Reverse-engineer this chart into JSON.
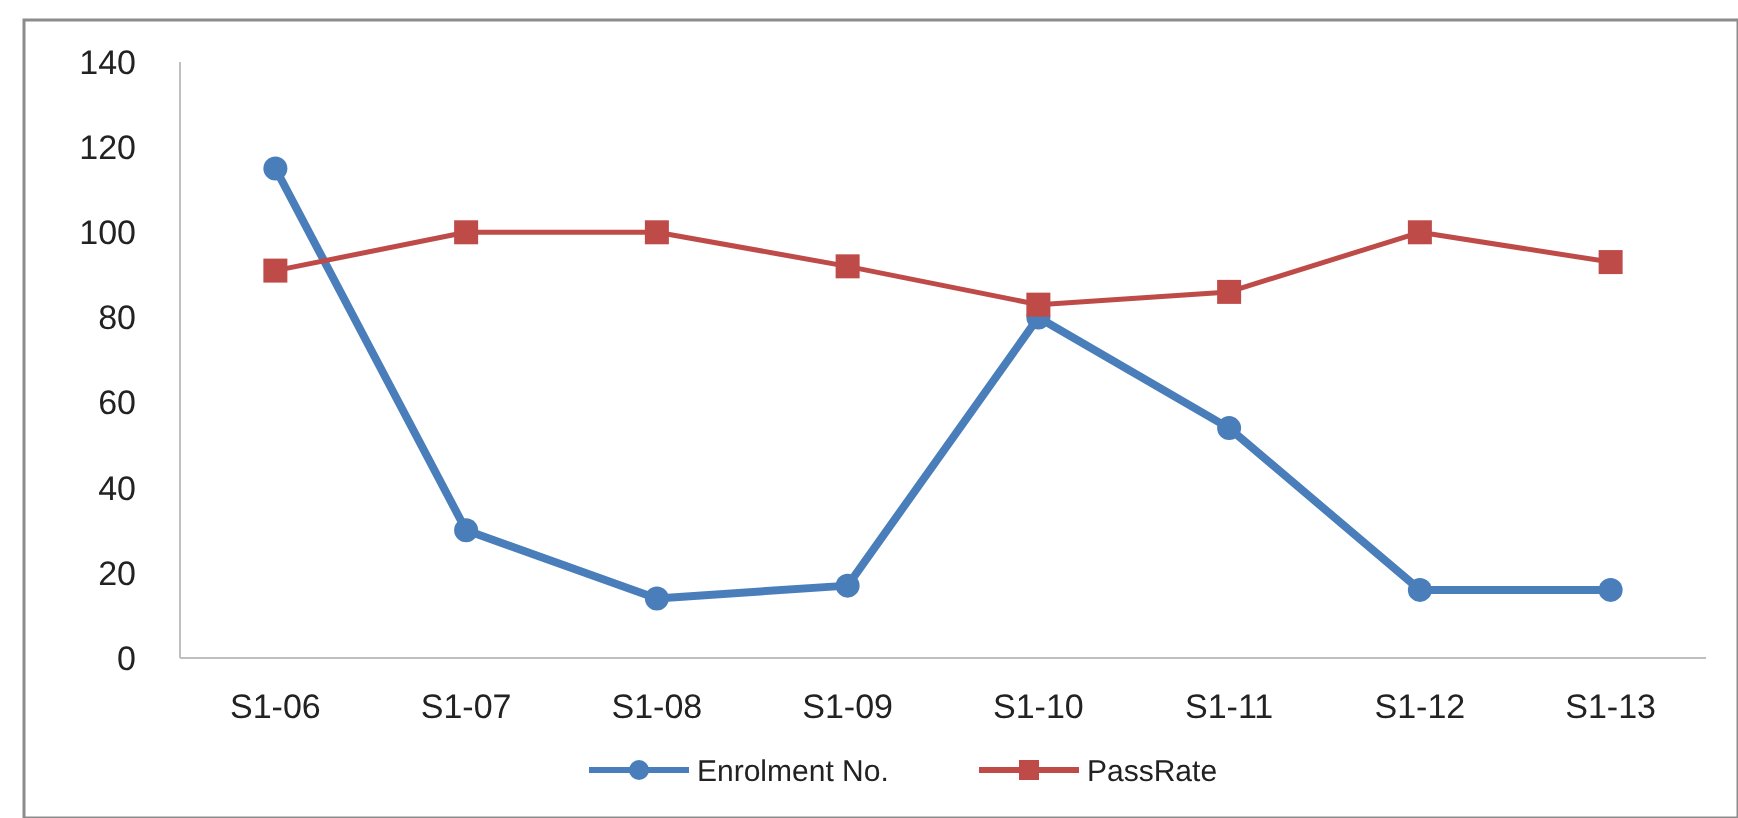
{
  "chart_data": {
    "type": "line",
    "categories": [
      "S1-06",
      "S1-07",
      "S1-08",
      "S1-09",
      "S1-10",
      "S1-11",
      "S1-12",
      "S1-13"
    ],
    "series": [
      {
        "name": "Enrolment No.",
        "color": "#4a7ebb",
        "marker": "circle",
        "values": [
          115,
          30,
          14,
          17,
          80,
          54,
          16,
          16
        ]
      },
      {
        "name": "PassRate",
        "color": "#be4b48",
        "marker": "square",
        "values": [
          91,
          100,
          100,
          92,
          83,
          86,
          100,
          93
        ]
      }
    ],
    "ylim": [
      0,
      140
    ],
    "yticks": [
      0,
      20,
      40,
      60,
      80,
      100,
      120,
      140
    ],
    "grid": false,
    "legend": "bottom"
  }
}
